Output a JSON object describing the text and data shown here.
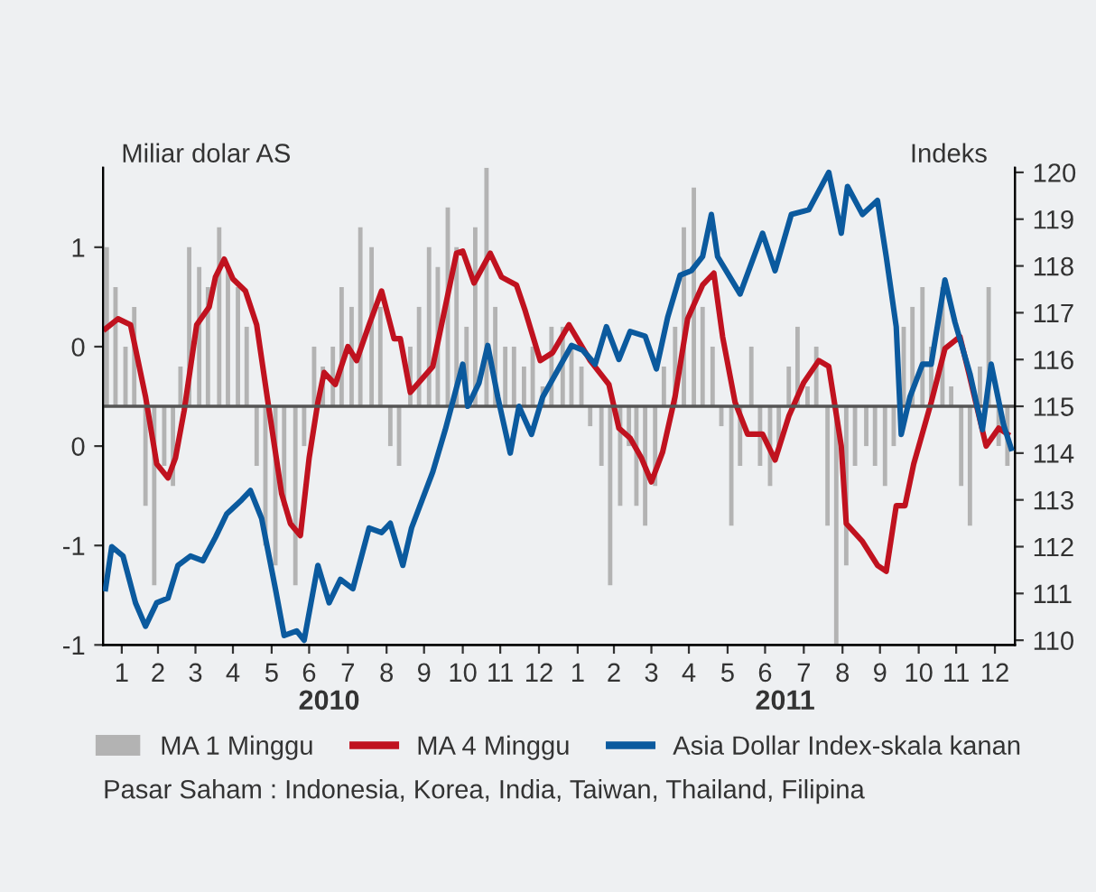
{
  "chart_data": {
    "type": "line",
    "ylabel": "Miliar dolar AS",
    "y2label": "Indeks",
    "xlim": [
      "2010-01-01",
      "2012-01-01"
    ],
    "xticks": [
      {
        "value": "2010-01-16",
        "label": "1"
      },
      {
        "value": "2010-02-14",
        "label": "2"
      },
      {
        "value": "2010-03-16",
        "label": "3"
      },
      {
        "value": "2010-04-15",
        "label": "4"
      },
      {
        "value": "2010-05-16",
        "label": "5"
      },
      {
        "value": "2010-06-15",
        "label": "6"
      },
      {
        "value": "2010-07-16",
        "label": "7"
      },
      {
        "value": "2010-08-16",
        "label": "8"
      },
      {
        "value": "2010-09-15",
        "label": "9"
      },
      {
        "value": "2010-10-16",
        "label": "10"
      },
      {
        "value": "2010-11-15",
        "label": "11"
      },
      {
        "value": "2010-12-16",
        "label": "12"
      },
      {
        "value": "2011-01-16",
        "label": "1"
      },
      {
        "value": "2011-02-14",
        "label": "2"
      },
      {
        "value": "2011-03-16",
        "label": "3"
      },
      {
        "value": "2011-04-15",
        "label": "4"
      },
      {
        "value": "2011-05-16",
        "label": "5"
      },
      {
        "value": "2011-06-15",
        "label": "6"
      },
      {
        "value": "2011-07-16",
        "label": "7"
      },
      {
        "value": "2011-08-16",
        "label": "8"
      },
      {
        "value": "2011-09-15",
        "label": "9"
      },
      {
        "value": "2011-10-16",
        "label": "10"
      },
      {
        "value": "2011-11-15",
        "label": "11"
      },
      {
        "value": "2011-12-16",
        "label": "12"
      }
    ],
    "x2lim": [
      "2010-01-01",
      "2012-01-01"
    ],
    "x2ticks": [
      {
        "value": "2010-07-01",
        "label": "2010"
      },
      {
        "value": "2011-07-01",
        "label": "2011"
      }
    ],
    "ylim": [
      -1.2,
      1.2
    ],
    "yticks": [
      {
        "value": 0.8,
        "label": "1"
      },
      {
        "value": 0.3,
        "label": "0"
      },
      {
        "value": -0.2,
        "label": "0"
      },
      {
        "value": -0.7,
        "label": "-1"
      },
      {
        "value": -1.2,
        "label": "-1"
      }
    ],
    "y2lim": [
      109.9,
      120.1
    ],
    "y2ticks": [
      110,
      111,
      112,
      113,
      114,
      115,
      116,
      117,
      118,
      119,
      120
    ],
    "ref_lines": [
      {
        "axis": "y2",
        "value": 115,
        "color": "#555555"
      }
    ],
    "grid": false,
    "legend": "bottom",
    "marker": "none",
    "line_style": "solid",
    "annotations": [
      "Pasar Saham : Indonesia, Korea, India, Taiwan, Thailand, Filipina"
    ],
    "series": [
      {
        "name": "MA 1 Minggu",
        "type": "bar",
        "axis": "y",
        "color": "#b3b3b3",
        "x": [
          "2010-01-04",
          "2010-01-11",
          "2010-01-19",
          "2010-01-26",
          "2010-02-04",
          "2010-02-11",
          "2010-02-19",
          "2010-02-26",
          "2010-03-04",
          "2010-03-11",
          "2010-03-19",
          "2010-03-26",
          "2010-04-04",
          "2010-04-11",
          "2010-04-19",
          "2010-04-26",
          "2010-05-04",
          "2010-05-11",
          "2010-05-19",
          "2010-05-26",
          "2010-06-04",
          "2010-06-11",
          "2010-06-19",
          "2010-06-26",
          "2010-07-04",
          "2010-07-11",
          "2010-07-19",
          "2010-07-26",
          "2010-08-04",
          "2010-08-11",
          "2010-08-19",
          "2010-08-26",
          "2010-09-04",
          "2010-09-11",
          "2010-09-19",
          "2010-09-26",
          "2010-10-04",
          "2010-10-11",
          "2010-10-19",
          "2010-10-26",
          "2010-11-04",
          "2010-11-11",
          "2010-11-19",
          "2010-11-26",
          "2010-12-04",
          "2010-12-11",
          "2010-12-19",
          "2010-12-26",
          "2011-01-04",
          "2011-01-11",
          "2011-01-19",
          "2011-01-26",
          "2011-02-04",
          "2011-02-11",
          "2011-02-19",
          "2011-02-26",
          "2011-03-04",
          "2011-03-11",
          "2011-03-19",
          "2011-03-26",
          "2011-04-04",
          "2011-04-11",
          "2011-04-19",
          "2011-04-26",
          "2011-05-04",
          "2011-05-11",
          "2011-05-19",
          "2011-05-26",
          "2011-06-04",
          "2011-06-11",
          "2011-06-19",
          "2011-06-26",
          "2011-07-04",
          "2011-07-11",
          "2011-07-19",
          "2011-07-26",
          "2011-08-04",
          "2011-08-11",
          "2011-08-19",
          "2011-08-26",
          "2011-09-04",
          "2011-09-11",
          "2011-09-19",
          "2011-09-26",
          "2011-10-04",
          "2011-10-11",
          "2011-10-19",
          "2011-10-26",
          "2011-11-04",
          "2011-11-11",
          "2011-11-19",
          "2011-11-26",
          "2011-12-04",
          "2011-12-11",
          "2011-12-19",
          "2011-12-26"
        ],
        "values": [
          0.8,
          0.6,
          0.3,
          0.5,
          -0.5,
          -0.9,
          -0.3,
          -0.4,
          0.2,
          0.8,
          0.7,
          0.6,
          0.9,
          0.7,
          0.6,
          0.4,
          -0.3,
          -0.7,
          -0.8,
          -0.5,
          -0.9,
          -0.2,
          0.3,
          0.2,
          0.3,
          0.6,
          0.5,
          0.9,
          0.8,
          0.5,
          -0.2,
          -0.3,
          0.3,
          0.5,
          0.8,
          0.7,
          1.0,
          0.8,
          0.4,
          0.9,
          1.2,
          0.5,
          0.3,
          0.3,
          0.2,
          0.3,
          0.1,
          0.4,
          0.4,
          0.3,
          0.2,
          -0.1,
          -0.3,
          -0.9,
          -0.5,
          -0.2,
          -0.5,
          -0.6,
          -0.4,
          0.2,
          0.4,
          0.9,
          1.1,
          0.5,
          0.3,
          -0.1,
          -0.6,
          -0.3,
          0.3,
          -0.3,
          -0.4,
          -0.2,
          0.2,
          0.4,
          0.1,
          0.3,
          -0.6,
          -1.2,
          -0.8,
          -0.3,
          -0.2,
          -0.3,
          -0.4,
          -0.2,
          0.4,
          0.5,
          0.6,
          0.3,
          0.6,
          0.1,
          -0.4,
          -0.6,
          0.2,
          0.6,
          -0.2,
          -0.3
        ]
      },
      {
        "name": "MA 4 Minggu",
        "axis": "y",
        "color": "#c0121f",
        "x": [
          "2010-01-03",
          "2010-01-13",
          "2010-01-23",
          "2010-01-27",
          "2010-02-04",
          "2010-02-13",
          "2010-02-22",
          "2010-02-28",
          "2010-03-07",
          "2010-03-17",
          "2010-03-27",
          "2010-04-01",
          "2010-04-08",
          "2010-04-15",
          "2010-04-25",
          "2010-05-04",
          "2010-05-14",
          "2010-05-24",
          "2010-05-31",
          "2010-06-08",
          "2010-06-15",
          "2010-06-22",
          "2010-06-27",
          "2010-07-06",
          "2010-07-16",
          "2010-07-23",
          "2010-08-02",
          "2010-08-12",
          "2010-08-22",
          "2010-08-27",
          "2010-09-04",
          "2010-09-22",
          "2010-09-29",
          "2010-10-11",
          "2010-10-16",
          "2010-10-25",
          "2010-11-07",
          "2010-11-16",
          "2010-11-28",
          "2010-12-05",
          "2010-12-17",
          "2010-12-27",
          "2011-01-09",
          "2011-01-26",
          "2011-02-10",
          "2011-02-18",
          "2011-02-27",
          "2011-03-08",
          "2011-03-16",
          "2011-03-25",
          "2011-04-04",
          "2011-04-14",
          "2011-04-26",
          "2011-05-05",
          "2011-05-12",
          "2011-05-22",
          "2011-06-01",
          "2011-06-13",
          "2011-06-23",
          "2011-07-04",
          "2011-07-16",
          "2011-07-28",
          "2011-08-05",
          "2011-08-15",
          "2011-08-19",
          "2011-09-01",
          "2011-09-13",
          "2011-09-20",
          "2011-09-28",
          "2011-10-05",
          "2011-10-12",
          "2011-10-26",
          "2011-11-06",
          "2011-11-18",
          "2011-11-25",
          "2011-12-09",
          "2011-12-19",
          "2011-12-26"
        ],
        "values": [
          0.39,
          0.44,
          0.41,
          0.29,
          0.05,
          -0.29,
          -0.36,
          -0.26,
          -0.02,
          0.41,
          0.5,
          0.65,
          0.74,
          0.64,
          0.58,
          0.41,
          -0.02,
          -0.44,
          -0.59,
          -0.65,
          -0.26,
          0.02,
          0.17,
          0.11,
          0.3,
          0.23,
          0.41,
          0.58,
          0.34,
          0.34,
          0.07,
          0.2,
          0.41,
          0.77,
          0.78,
          0.62,
          0.77,
          0.65,
          0.61,
          0.48,
          0.23,
          0.27,
          0.41,
          0.23,
          0.11,
          -0.11,
          -0.16,
          -0.26,
          -0.38,
          -0.23,
          0.05,
          0.44,
          0.61,
          0.67,
          0.35,
          0.02,
          -0.14,
          -0.14,
          -0.27,
          -0.05,
          0.12,
          0.23,
          0.2,
          -0.2,
          -0.59,
          -0.68,
          -0.8,
          -0.83,
          -0.5,
          -0.5,
          -0.29,
          0.02,
          0.29,
          0.35,
          0.17,
          -0.2,
          -0.11,
          -0.14
        ]
      },
      {
        "name": "Asia Dollar Index-skala kanan",
        "axis": "y2",
        "color": "#0b5a9e",
        "x": [
          "2010-01-03",
          "2010-01-08",
          "2010-01-17",
          "2010-01-27",
          "2010-02-04",
          "2010-02-13",
          "2010-02-22",
          "2010-03-02",
          "2010-03-12",
          "2010-03-22",
          "2010-04-01",
          "2010-04-10",
          "2010-04-22",
          "2010-04-29",
          "2010-05-08",
          "2010-05-19",
          "2010-05-26",
          "2010-06-05",
          "2010-06-11",
          "2010-06-22",
          "2010-07-01",
          "2010-07-10",
          "2010-07-20",
          "2010-08-02",
          "2010-08-12",
          "2010-08-19",
          "2010-08-29",
          "2010-09-05",
          "2010-09-22",
          "2010-10-02",
          "2010-10-16",
          "2010-10-20",
          "2010-10-29",
          "2010-11-05",
          "2010-11-13",
          "2010-11-23",
          "2010-11-30",
          "2010-12-10",
          "2010-12-19",
          "2011-01-11",
          "2011-01-20",
          "2011-01-30",
          "2011-02-08",
          "2011-02-18",
          "2011-02-27",
          "2011-03-11",
          "2011-03-20",
          "2011-03-29",
          "2011-04-08",
          "2011-04-17",
          "2011-04-26",
          "2011-05-03",
          "2011-05-08",
          "2011-05-17",
          "2011-05-26",
          "2011-06-13",
          "2011-06-23",
          "2011-07-06",
          "2011-07-20",
          "2011-08-05",
          "2011-08-15",
          "2011-08-20",
          "2011-09-01",
          "2011-09-13",
          "2011-09-20",
          "2011-09-28",
          "2011-10-02",
          "2011-10-09",
          "2011-10-19",
          "2011-10-26",
          "2011-11-06",
          "2011-11-14",
          "2011-11-26",
          "2011-12-06",
          "2011-12-13",
          "2011-12-23",
          "2011-12-29"
        ],
        "values": [
          111.1,
          112.0,
          111.8,
          110.8,
          110.3,
          110.8,
          110.9,
          111.6,
          111.8,
          111.7,
          112.2,
          112.7,
          113.0,
          113.2,
          112.6,
          111.1,
          110.1,
          110.2,
          110.0,
          111.6,
          110.8,
          111.3,
          111.1,
          112.4,
          112.3,
          112.5,
          111.6,
          112.4,
          113.6,
          114.5,
          115.9,
          115.0,
          115.5,
          116.3,
          115.2,
          114.0,
          115.0,
          114.4,
          115.2,
          116.3,
          116.2,
          115.9,
          116.7,
          116.0,
          116.6,
          116.5,
          115.8,
          116.9,
          117.8,
          117.9,
          118.2,
          119.1,
          118.2,
          117.8,
          117.4,
          118.7,
          117.9,
          119.1,
          119.2,
          120.0,
          118.7,
          119.7,
          119.1,
          119.4,
          118.2,
          116.7,
          114.4,
          115.2,
          115.9,
          115.9,
          117.7,
          116.8,
          115.7,
          114.5,
          115.9,
          114.6,
          114.1
        ]
      }
    ]
  }
}
